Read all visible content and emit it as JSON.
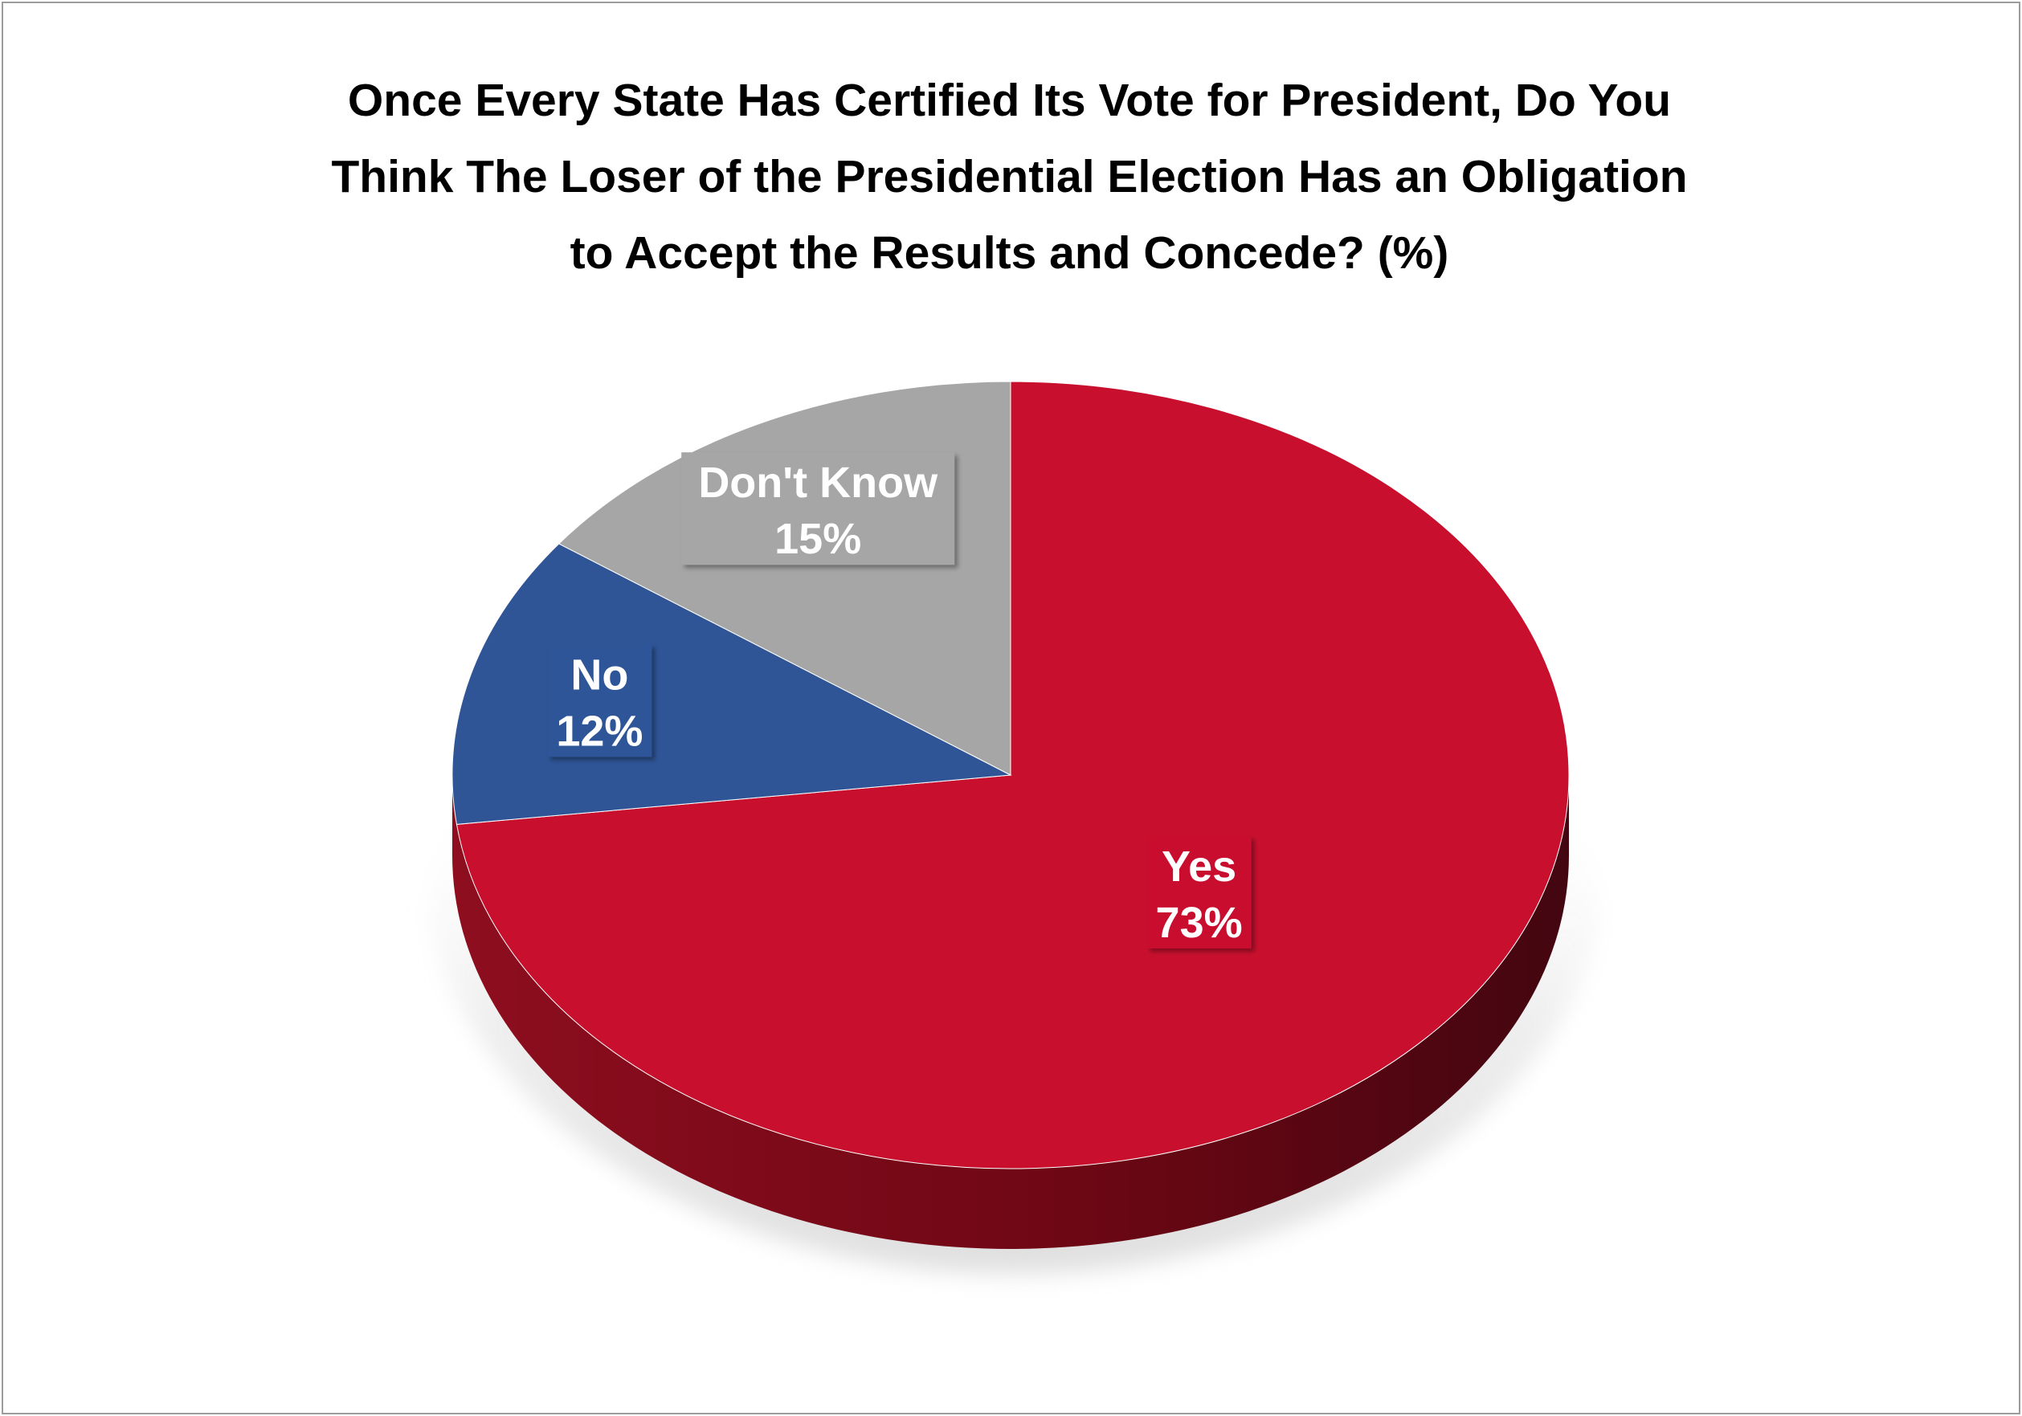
{
  "chart_data": {
    "type": "pie",
    "title_lines": [
      "Once Every State Has Certified Its Vote for President, Do You",
      "Think The Loser of the Presidential Election Has an Obligation",
      "to Accept the Results and Concede? (%)"
    ],
    "unit": "%",
    "slices": [
      {
        "label": "Yes",
        "value": 73,
        "value_label": "73%",
        "color": "#c8102e"
      },
      {
        "label": "No",
        "value": 12,
        "value_label": "12%",
        "color": "#2f5597"
      },
      {
        "label": "Don't Know",
        "value": 15,
        "value_label": "15%",
        "color": "#a6a6a6"
      }
    ],
    "style": "3d"
  }
}
